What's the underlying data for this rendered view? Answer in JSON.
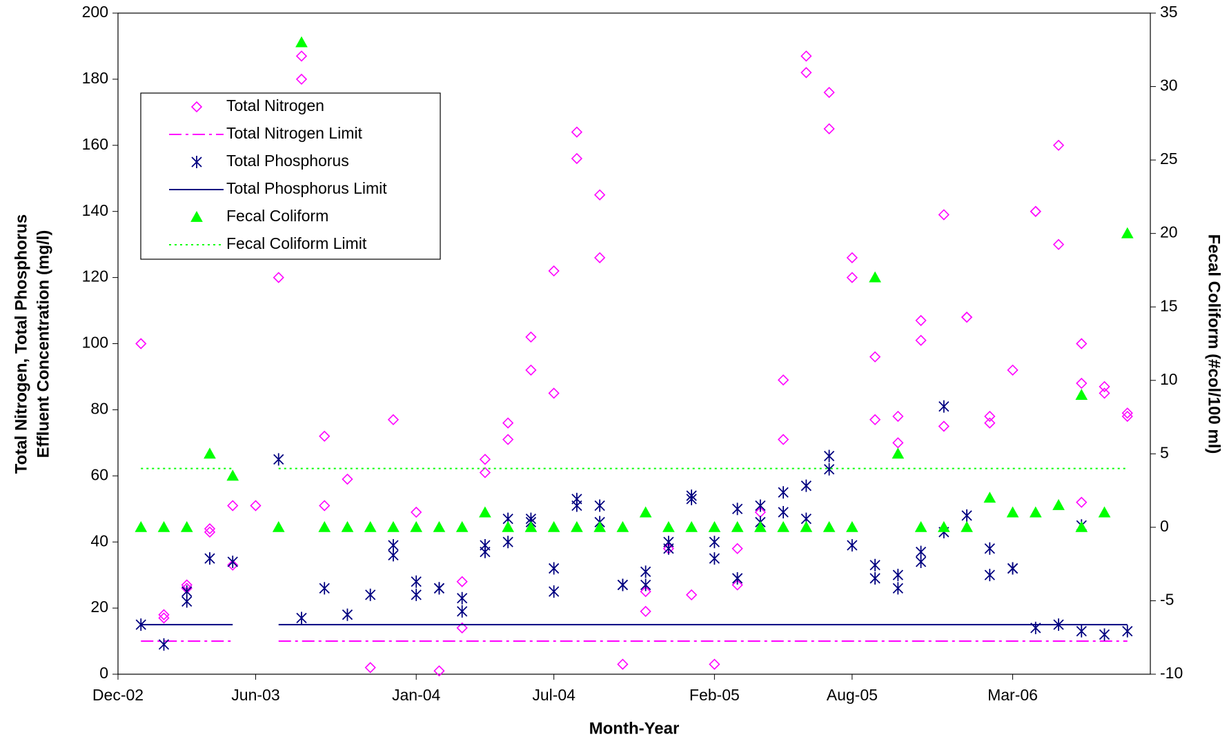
{
  "chart_data": {
    "type": "scatter",
    "xlabel": "Month-Year",
    "ylabel": [
      "Total Nitrogen, Total Phosphorus",
      "Effluent Concentration (mg/l)"
    ],
    "y2label": "Fecal Coliform (#col/100 ml)",
    "xlim": [
      "2002-12",
      "2006-09"
    ],
    "xticks": [
      {
        "value": "2002-12",
        "label": "Dec-02"
      },
      {
        "value": "2003-06",
        "label": "Jun-03"
      },
      {
        "value": "2004-01",
        "label": "Jan-04"
      },
      {
        "value": "2004-07",
        "label": "Jul-04"
      },
      {
        "value": "2005-02",
        "label": "Feb-05"
      },
      {
        "value": "2005-08",
        "label": "Aug-05"
      },
      {
        "value": "2006-03",
        "label": "Mar-06"
      }
    ],
    "ylim": [
      0,
      200
    ],
    "yticks": [
      0,
      20,
      40,
      60,
      80,
      100,
      120,
      140,
      160,
      180,
      200
    ],
    "y2lim": [
      -10,
      35
    ],
    "y2ticks": [
      -10,
      -5,
      0,
      5,
      10,
      15,
      20,
      25,
      30,
      35
    ],
    "legend": "upper left",
    "grid": false,
    "series": [
      {
        "name": "Total Nitrogen",
        "color": "#ff00ff",
        "marker": "diamond",
        "x": [
          "2003-01",
          "2003-02",
          "2003-02",
          "2003-03",
          "2003-03",
          "2003-04",
          "2003-04",
          "2003-05",
          "2003-05",
          "2003-06",
          "2003-07",
          "2003-08",
          "2003-08",
          "2003-09",
          "2003-09",
          "2003-10",
          "2003-11",
          "2003-12",
          "2004-01",
          "2004-02",
          "2004-03",
          "2004-03",
          "2004-04",
          "2004-04",
          "2004-05",
          "2004-05",
          "2004-06",
          "2004-06",
          "2004-07",
          "2004-07",
          "2004-08",
          "2004-08",
          "2004-09",
          "2004-09",
          "2004-10",
          "2004-11",
          "2004-11",
          "2004-12",
          "2005-01",
          "2005-02",
          "2005-03",
          "2005-03",
          "2005-04",
          "2005-05",
          "2005-05",
          "2005-06",
          "2005-06",
          "2005-07",
          "2005-07",
          "2005-08",
          "2005-08",
          "2005-09",
          "2005-09",
          "2005-10",
          "2005-10",
          "2005-11",
          "2005-11",
          "2005-12",
          "2005-12",
          "2006-01",
          "2006-01",
          "2006-02",
          "2006-02",
          "2006-03",
          "2006-04",
          "2006-04",
          "2006-05",
          "2006-05",
          "2006-06",
          "2006-06",
          "2006-06",
          "2006-07",
          "2006-07",
          "2006-08",
          "2006-08"
        ],
        "values": [
          100,
          18,
          17,
          27,
          26,
          44,
          43,
          51,
          33,
          51,
          120,
          187,
          180,
          51,
          72,
          59,
          2,
          77,
          49,
          1,
          28,
          14,
          65,
          61,
          76,
          71,
          102,
          92,
          122,
          85,
          164,
          156,
          145,
          126,
          3,
          25,
          19,
          38,
          24,
          3,
          38,
          27,
          49,
          89,
          71,
          187,
          182,
          176,
          165,
          126,
          120,
          96,
          77,
          78,
          70,
          107,
          101,
          139,
          75,
          108,
          108,
          78,
          76,
          92,
          140,
          140,
          160,
          130,
          100,
          88,
          52,
          87,
          85,
          79,
          78
        ]
      },
      {
        "name": "Total Nitrogen Limit",
        "color": "#ff00ff",
        "line_style": "dash-dot",
        "x": [
          "2003-01",
          "2003-02",
          "2003-03",
          "2003-04",
          "2003-05",
          "2003-06",
          "2003-07",
          "2003-08",
          "2003-09",
          "2003-10",
          "2003-11",
          "2003-12",
          "2004-01",
          "2004-02",
          "2004-03",
          "2004-04",
          "2004-05",
          "2004-06",
          "2004-07",
          "2004-08",
          "2004-09",
          "2004-10",
          "2004-11",
          "2004-12",
          "2005-01",
          "2005-02",
          "2005-03",
          "2005-04",
          "2005-05",
          "2005-06",
          "2005-07",
          "2005-08",
          "2005-09",
          "2005-10",
          "2005-11",
          "2005-12",
          "2006-01",
          "2006-02",
          "2006-03",
          "2006-04",
          "2006-05",
          "2006-06",
          "2006-07",
          "2006-08"
        ],
        "values": [
          10,
          10,
          10,
          10,
          10,
          null,
          10,
          10,
          10,
          10,
          10,
          10,
          10,
          10,
          10,
          10,
          10,
          10,
          10,
          10,
          10,
          10,
          10,
          10,
          10,
          10,
          10,
          10,
          10,
          10,
          10,
          10,
          10,
          10,
          10,
          10,
          10,
          10,
          10,
          10,
          10,
          10,
          10,
          10
        ]
      },
      {
        "name": "Total Phosphorus",
        "color": "#000080",
        "marker": "star",
        "x": [
          "2003-01",
          "2003-02",
          "2003-03",
          "2003-03",
          "2003-04",
          "2003-05",
          "2003-07",
          "2003-08",
          "2003-09",
          "2003-10",
          "2003-11",
          "2003-12",
          "2003-12",
          "2004-01",
          "2004-01",
          "2004-02",
          "2004-02",
          "2004-03",
          "2004-03",
          "2004-04",
          "2004-04",
          "2004-05",
          "2004-05",
          "2004-06",
          "2004-06",
          "2004-07",
          "2004-07",
          "2004-08",
          "2004-08",
          "2004-09",
          "2004-09",
          "2004-10",
          "2004-10",
          "2004-11",
          "2004-11",
          "2004-12",
          "2004-12",
          "2005-01",
          "2005-01",
          "2005-02",
          "2005-02",
          "2005-03",
          "2005-03",
          "2005-04",
          "2005-04",
          "2005-05",
          "2005-05",
          "2005-06",
          "2005-06",
          "2005-07",
          "2005-07",
          "2005-08",
          "2005-09",
          "2005-09",
          "2005-10",
          "2005-10",
          "2005-11",
          "2005-11",
          "2005-12",
          "2005-12",
          "2006-01",
          "2006-02",
          "2006-02",
          "2006-03",
          "2006-03",
          "2006-04",
          "2006-05",
          "2006-06",
          "2006-06",
          "2006-07",
          "2006-08"
        ],
        "values": [
          15,
          9,
          25,
          22,
          35,
          34,
          65,
          17,
          26,
          18,
          24,
          39,
          36,
          28,
          24,
          26,
          26,
          23,
          19,
          39,
          37,
          47,
          40,
          47,
          46,
          32,
          25,
          53,
          51,
          51,
          46,
          27,
          27,
          31,
          27,
          40,
          38,
          54,
          53,
          40,
          35,
          50,
          29,
          51,
          46,
          55,
          49,
          57,
          47,
          66,
          62,
          39,
          33,
          29,
          30,
          26,
          37,
          34,
          81,
          43,
          48,
          38,
          30,
          32,
          32,
          14,
          15,
          45,
          13,
          12,
          13
        ]
      },
      {
        "name": "Total Phosphorus Limit",
        "color": "#000080",
        "line_style": "solid",
        "x": [
          "2003-01",
          "2003-02",
          "2003-03",
          "2003-04",
          "2003-05",
          "2003-06",
          "2003-07",
          "2003-08",
          "2003-09",
          "2003-10",
          "2003-11",
          "2003-12",
          "2004-01",
          "2004-02",
          "2004-03",
          "2004-04",
          "2004-05",
          "2004-06",
          "2004-07",
          "2004-08",
          "2004-09",
          "2004-10",
          "2004-11",
          "2004-12",
          "2005-01",
          "2005-02",
          "2005-03",
          "2005-04",
          "2005-05",
          "2005-06",
          "2005-07",
          "2005-08",
          "2005-09",
          "2005-10",
          "2005-11",
          "2005-12",
          "2006-01",
          "2006-02",
          "2006-03",
          "2006-04",
          "2006-05",
          "2006-06",
          "2006-07",
          "2006-08"
        ],
        "values": [
          15,
          15,
          15,
          15,
          15,
          null,
          15,
          15,
          15,
          15,
          15,
          15,
          15,
          15,
          15,
          15,
          15,
          15,
          15,
          15,
          15,
          15,
          15,
          15,
          15,
          15,
          15,
          15,
          15,
          15,
          15,
          15,
          15,
          15,
          15,
          15,
          15,
          15,
          15,
          15,
          15,
          15,
          15,
          15
        ]
      },
      {
        "name": "Fecal Coliform",
        "color": "#00ff00",
        "marker": "triangle",
        "axis": "y2",
        "x": [
          "2003-01",
          "2003-02",
          "2003-03",
          "2003-04",
          "2003-05",
          "2003-07",
          "2003-08",
          "2003-09",
          "2003-10",
          "2003-11",
          "2003-12",
          "2004-01",
          "2004-02",
          "2004-03",
          "2004-04",
          "2004-05",
          "2004-06",
          "2004-07",
          "2004-08",
          "2004-09",
          "2004-10",
          "2004-11",
          "2004-12",
          "2005-01",
          "2005-02",
          "2005-03",
          "2005-04",
          "2005-05",
          "2005-06",
          "2005-07",
          "2005-08",
          "2005-09",
          "2005-10",
          "2005-11",
          "2005-12",
          "2006-01",
          "2006-02",
          "2006-03",
          "2006-04",
          "2006-05",
          "2006-06",
          "2006-06",
          "2006-07",
          "2006-08"
        ],
        "values": [
          0,
          0,
          0,
          5,
          3.5,
          0,
          33,
          0,
          0,
          0,
          0,
          0,
          0,
          0,
          1,
          0,
          0,
          0,
          0,
          0,
          0,
          1,
          0,
          0,
          0,
          0,
          0,
          0,
          0,
          0,
          0,
          17,
          5,
          0,
          0,
          0,
          2,
          1,
          1,
          1.5,
          9,
          0,
          1,
          20
        ]
      },
      {
        "name": "Fecal Coliform Limit",
        "color": "#00ff00",
        "line_style": "dotted",
        "axis": "y2",
        "x": [
          "2003-01",
          "2003-02",
          "2003-03",
          "2003-04",
          "2003-05",
          "2003-06",
          "2003-07",
          "2003-08",
          "2003-09",
          "2003-10",
          "2003-11",
          "2003-12",
          "2004-01",
          "2004-02",
          "2004-03",
          "2004-04",
          "2004-05",
          "2004-06",
          "2004-07",
          "2004-08",
          "2004-09",
          "2004-10",
          "2004-11",
          "2004-12",
          "2005-01",
          "2005-02",
          "2005-03",
          "2005-04",
          "2005-05",
          "2005-06",
          "2005-07",
          "2005-08",
          "2005-09",
          "2005-10",
          "2005-11",
          "2005-12",
          "2006-01",
          "2006-02",
          "2006-03",
          "2006-04",
          "2006-05",
          "2006-06",
          "2006-07",
          "2006-08"
        ],
        "values": [
          4,
          4,
          4,
          4,
          4,
          null,
          4,
          4,
          4,
          4,
          4,
          4,
          4,
          4,
          4,
          4,
          4,
          4,
          4,
          4,
          4,
          4,
          4,
          4,
          4,
          4,
          4,
          4,
          4,
          4,
          4,
          4,
          4,
          4,
          4,
          4,
          4,
          4,
          4,
          4,
          4,
          4,
          4,
          4
        ]
      }
    ]
  }
}
